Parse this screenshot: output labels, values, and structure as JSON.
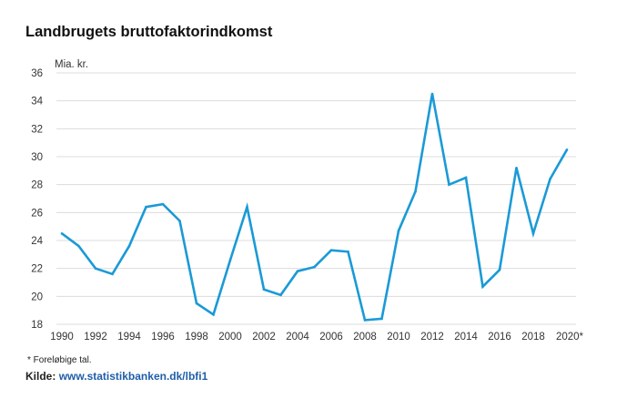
{
  "title": "Landbrugets bruttofaktorindkomst",
  "footnote": "* Foreløbige tal.",
  "source": {
    "label": "Kilde:",
    "link": "www.statistikbanken.dk/lbfi1"
  },
  "colors": {
    "line": "#1a9ad6",
    "grid": "#dcdcdc",
    "link": "#1f5ea8"
  },
  "chart_data": {
    "type": "line",
    "title": "Landbrugets bruttofaktorindkomst",
    "ylabel": "Mia. kr.",
    "xlabel": "",
    "ylim": [
      18,
      36
    ],
    "yticks": [
      18,
      20,
      22,
      24,
      26,
      28,
      30,
      32,
      34,
      36
    ],
    "xlim": [
      1990,
      2020
    ],
    "xticks": [
      "1990",
      "1992",
      "1994",
      "1996",
      "1998",
      "2000",
      "2002",
      "2004",
      "2006",
      "2008",
      "2010",
      "2012",
      "2014",
      "2016",
      "2018",
      "2020*"
    ],
    "grid": "horizontal",
    "series": [
      {
        "x": [
          1990,
          1991,
          1992,
          1993,
          1994,
          1995,
          1996,
          1997,
          1998,
          1999,
          2000,
          2001,
          2002,
          2003,
          2004,
          2005,
          2006,
          2007,
          2008,
          2009,
          2010,
          2011,
          2012,
          2013,
          2014,
          2015,
          2016,
          2017,
          2018,
          2019,
          2020
        ],
        "values": [
          24.5,
          23.6,
          22.0,
          21.6,
          23.6,
          26.4,
          26.6,
          25.4,
          19.5,
          18.7,
          22.6,
          26.4,
          20.5,
          20.1,
          21.8,
          22.1,
          23.3,
          23.2,
          18.3,
          18.4,
          24.7,
          27.5,
          34.5,
          28.0,
          28.5,
          20.7,
          21.9,
          29.2,
          24.5,
          28.4,
          30.5
        ]
      }
    ]
  }
}
